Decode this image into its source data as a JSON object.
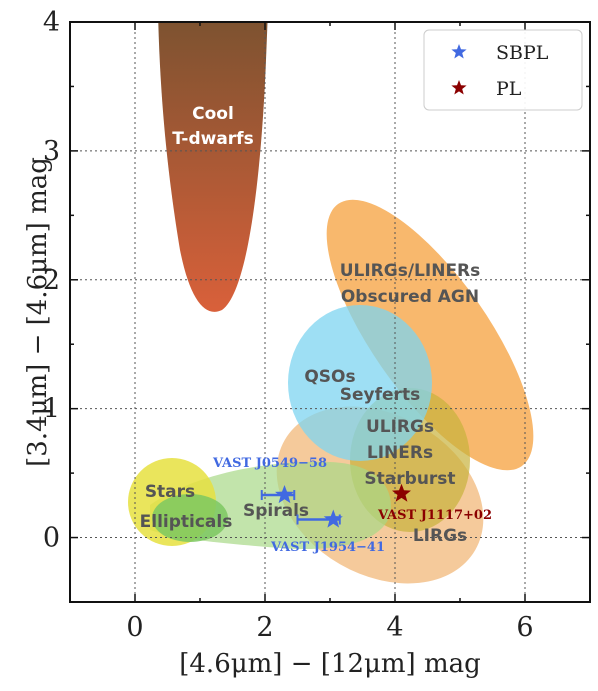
{
  "chart_data": {
    "type": "scatter",
    "xlabel": "[4.6μm] − [12μm] mag",
    "ylabel": "[3.4μm] − [4.6μm] mag",
    "xlim": [
      -1.0,
      7.0
    ],
    "ylim": [
      -0.5,
      4.0
    ],
    "xticks": [
      0,
      2,
      4,
      6
    ],
    "yticks": [
      0,
      1,
      2,
      3,
      4
    ],
    "grid": true,
    "legend_position": "top-right",
    "legend": [
      {
        "label": "SBPL",
        "color": "#4169e1",
        "marker": "star"
      },
      {
        "label": "PL",
        "color": "#8b0000",
        "marker": "star"
      }
    ],
    "regions": [
      {
        "name": "T-dwarfs",
        "label": [
          "Cool",
          "T-dwarfs"
        ],
        "color_top": "#7a5230",
        "color_bottom": "#d9603a"
      },
      {
        "name": "ULIRGs/LINERs Obscured AGN",
        "label": [
          "ULIRGs/LINERs",
          "Obscured AGN"
        ],
        "color": "#f5a03c"
      },
      {
        "name": "QSOs/Seyferts",
        "label": [
          "QSOs",
          "Seyferts"
        ],
        "color": "#7ed4f0"
      },
      {
        "name": "ULIRGs LINERs Starburst",
        "label": [
          "ULIRGs",
          "LINERs",
          "Starburst"
        ],
        "color": "#c8b23c"
      },
      {
        "name": "LIRGs",
        "label": [
          "LIRGs"
        ],
        "color": "#f2b87a"
      },
      {
        "name": "Spirals",
        "label": [
          "Spirals"
        ],
        "color": "#a8d888"
      },
      {
        "name": "Stars",
        "label": [
          "Stars"
        ],
        "color": "#e6e040"
      },
      {
        "name": "Ellipticals",
        "label": [
          "Ellipticals"
        ],
        "color": "#7cc860"
      }
    ],
    "series": [
      {
        "name": "SBPL",
        "color": "#4169e1",
        "points": [
          {
            "source": "VAST J0549−58",
            "x": 2.3,
            "y": 0.33,
            "xerr_minus": 0.35,
            "xerr_plus": 0.15
          },
          {
            "source": "VAST J1954−41",
            "x": 3.05,
            "y": 0.14,
            "xerr_minus": 0.55,
            "xerr_plus": 0.1
          }
        ]
      },
      {
        "name": "PL",
        "color": "#8b0000",
        "points": [
          {
            "source": "VAST J1117+02",
            "x": 4.1,
            "y": 0.34
          }
        ]
      }
    ]
  }
}
